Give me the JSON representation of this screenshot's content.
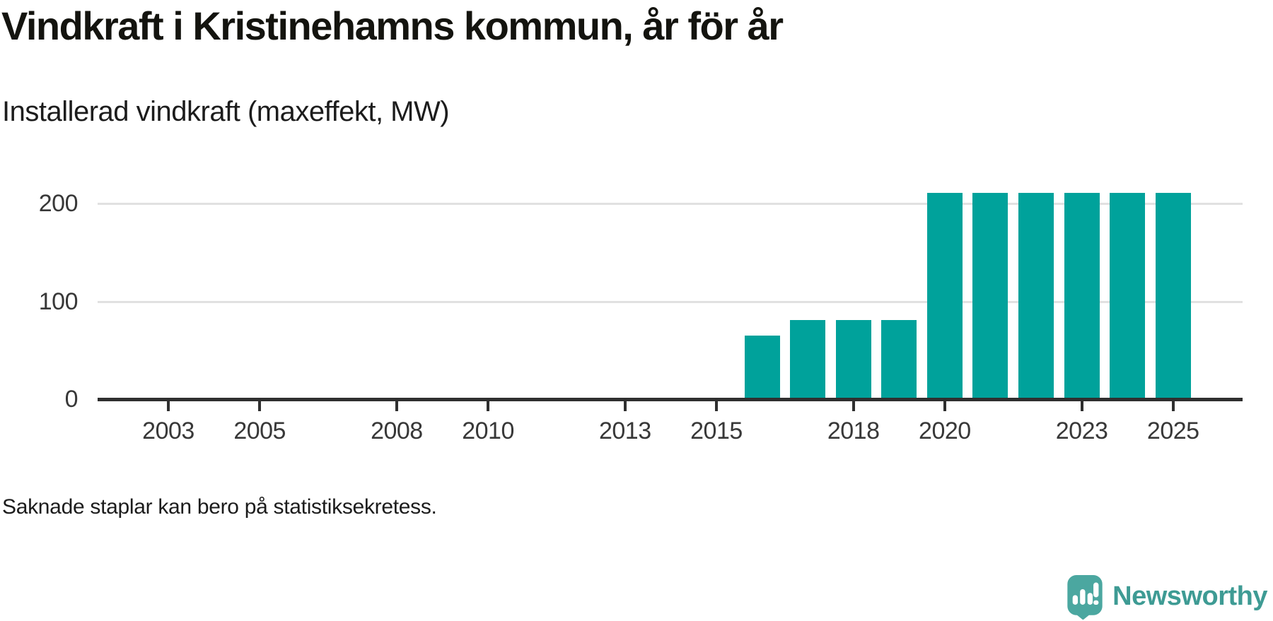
{
  "header": {
    "title": "Vindkraft i Kristinehamns kommun, år för år",
    "subtitle": "Installerad vindkraft (maxeffekt, MW)"
  },
  "footnote": {
    "text": "Saknade staplar kan bero på statistiksekretess."
  },
  "logo": {
    "text": "Newsworthy",
    "icon": "newsworthy-speech-bubble-bar-chart-icon"
  },
  "colors": {
    "bar": "#00a29b",
    "axis_line": "#2f2f2f",
    "grid_line": "#e1e1e1",
    "axis_text": "#383838",
    "title_text": "#14140f",
    "logo_bubble": "#4ba7a0",
    "logo_text": "#3e9b94",
    "background": "#ffffff"
  },
  "chart_data": {
    "type": "bar",
    "title": "Vindkraft i Kristinehamns kommun, år för år",
    "subtitle": "Installerad vindkraft (maxeffekt, MW)",
    "ylabel": "MW",
    "xlabel": "",
    "x": [
      2002,
      2003,
      2004,
      2005,
      2006,
      2007,
      2008,
      2009,
      2010,
      2011,
      2012,
      2013,
      2014,
      2015,
      2016,
      2017,
      2018,
      2019,
      2020,
      2021,
      2022,
      2023,
      2024,
      2025
    ],
    "values": [
      null,
      null,
      null,
      null,
      null,
      null,
      null,
      null,
      null,
      null,
      null,
      null,
      null,
      null,
      65,
      81,
      81,
      81,
      211,
      211,
      211,
      211,
      211,
      211
    ],
    "x_tick_labels": [
      "2003",
      "2005",
      "2008",
      "2010",
      "2013",
      "2015",
      "2018",
      "2020",
      "2023",
      "2025"
    ],
    "x_tick_years": [
      2003,
      2005,
      2008,
      2010,
      2013,
      2015,
      2018,
      2020,
      2023,
      2025
    ],
    "y_ticks": [
      0,
      100,
      200
    ],
    "xlim": [
      2001.45,
      2026.55
    ],
    "ylim": [
      0,
      237
    ],
    "grid": "horizontal-only",
    "legend": "none",
    "bar_color": "#00a29b",
    "missing_data_note": "Saknade staplar kan bero på statistiksekretess."
  }
}
